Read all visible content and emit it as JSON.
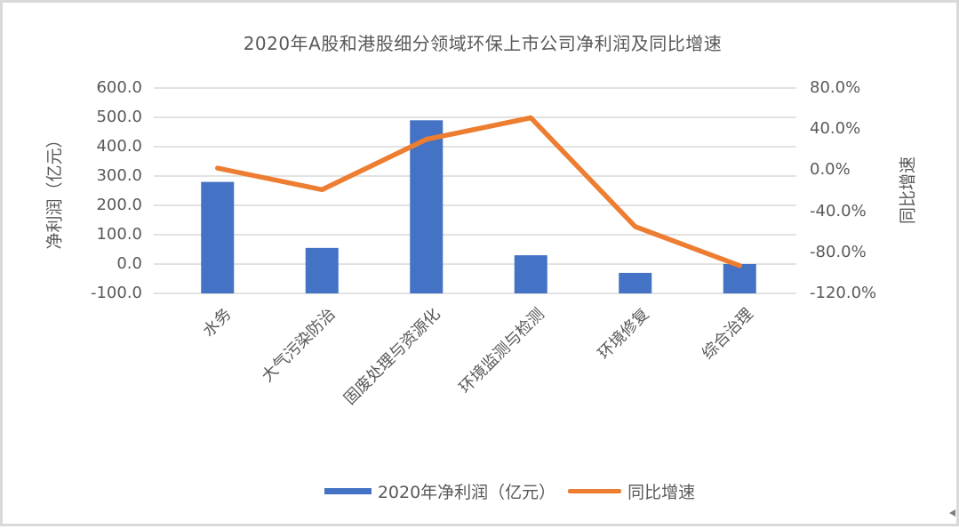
{
  "chart_data": {
    "type": "bar",
    "subtype": "combo-bar-line",
    "title": "2020年A股和港股细分领域环保上市公司净利润及同比增速",
    "categories": [
      "水务",
      "大气污染防治",
      "固废处理与资源化",
      "环境监测与检测",
      "环境修复",
      "综合治理"
    ],
    "series": [
      {
        "name": "2020年净利润（亿元）",
        "type": "bar",
        "axis": "left",
        "color": "#4472C4",
        "values": [
          280,
          55,
          490,
          30,
          -30,
          0
        ]
      },
      {
        "name": "同比增速",
        "type": "line",
        "axis": "right",
        "color": "#ED7D31",
        "values": [
          2,
          -19,
          30,
          51,
          -55,
          -93
        ]
      }
    ],
    "left_axis": {
      "title": "净利润（亿元）",
      "min": -100,
      "max": 600,
      "tick_step": 100,
      "tick_labels": [
        "600.0",
        "500.0",
        "400.0",
        "300.0",
        "200.0",
        "100.0",
        "0.0",
        "-100.0"
      ]
    },
    "right_axis": {
      "title": "同比增速",
      "min": -120,
      "max": 80,
      "tick_step": 40,
      "tick_labels": [
        "80.0%",
        "40.0%",
        "0.0%",
        "-40.0%",
        "-80.0%",
        "-120.0%"
      ]
    },
    "layout": {
      "grid": "horizontal",
      "legend_position": "bottom",
      "bar_baseline": "axis-min",
      "category_label_rotation_deg": 45,
      "gridline_color": "#D9D9D9",
      "text_color": "#595959",
      "background": "#FFFFFF",
      "border_color": "#D9D9D9"
    }
  }
}
